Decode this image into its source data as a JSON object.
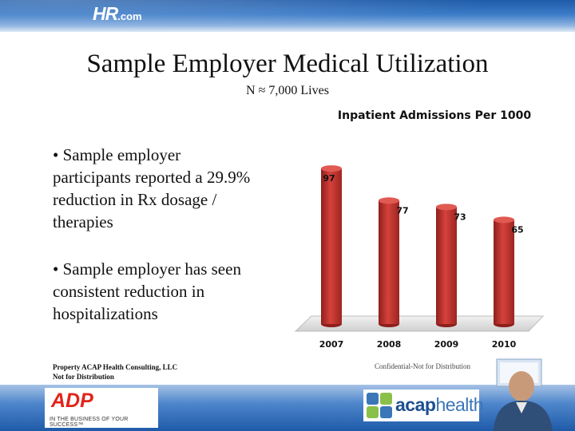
{
  "header": {
    "logo_main": "HR",
    "logo_suffix": ".com"
  },
  "slide": {
    "title": "Sample Employer Medical Utilization",
    "subtitle": "N ≈ 7,000 Lives",
    "bullets": [
      "•  Sample employer participants reported a 29.9% reduction in Rx dosage / therapies",
      "•  Sample employer has seen consistent reduction in hospitalizations"
    ],
    "footer_left_line1": "Property ACAP Health Consulting, LLC",
    "footer_left_line2": "Not for Distribution",
    "footer_center": "Confidential-Not for Distribution"
  },
  "logos": {
    "adp": "ADP",
    "adp_tagline": "IN THE BUSINESS OF YOUR SUCCESS™",
    "acap_a": "acap",
    "acap_b": "health"
  },
  "chart_data": {
    "type": "bar",
    "title": "Inpatient Admissions Per 1000",
    "categories": [
      "2007",
      "2008",
      "2009",
      "2010"
    ],
    "values": [
      97,
      77,
      73,
      65
    ],
    "ylim": [
      0,
      110
    ],
    "grid": false,
    "bar_color": "#c0332f"
  }
}
